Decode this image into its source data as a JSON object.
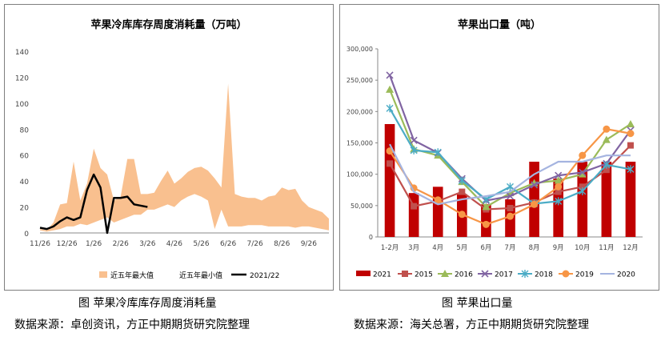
{
  "left": {
    "caption": "图  苹果冷库库存周度消耗量",
    "source": "数据来源：卓创资讯，方正中期期货研究院整理",
    "chart_data": {
      "type": "area",
      "title": "苹果冷库库存周度消耗量（万吨）",
      "y_ticks": [
        0,
        20,
        40,
        60,
        80,
        100,
        120,
        140
      ],
      "ylim": [
        0,
        140
      ],
      "x_tick_labels": [
        "11/26",
        "12/26",
        "1/26",
        "2/26",
        "3/26",
        "4/26",
        "5/26",
        "6/26",
        "7/26",
        "8/26",
        "9/26"
      ],
      "x_count": 44,
      "grid": false,
      "legend_position": "bottom",
      "series": [
        {
          "name": "近五年最大值",
          "color": "#f9c08f",
          "values": [
            3,
            2,
            8,
            22,
            23,
            55,
            25,
            38,
            65,
            50,
            45,
            25,
            28,
            57,
            57,
            30,
            30,
            31,
            40,
            48,
            38,
            42,
            47,
            50,
            51,
            48,
            42,
            35,
            115,
            30,
            28,
            27,
            27,
            25,
            28,
            29,
            35,
            33,
            34,
            25,
            20,
            18,
            16,
            11
          ]
        },
        {
          "name": "近五年最小值",
          "color": "#ffffff",
          "values": [
            2,
            1,
            2,
            3,
            5,
            5,
            7,
            6,
            8,
            10,
            12,
            8,
            10,
            12,
            14,
            14,
            18,
            18,
            20,
            22,
            20,
            25,
            28,
            30,
            28,
            25,
            3,
            18,
            5,
            5,
            5,
            6,
            6,
            6,
            5,
            5,
            5,
            5,
            4,
            5,
            5,
            4,
            3,
            2
          ]
        },
        {
          "name": "2021/22",
          "color": "#000000",
          "values": [
            4,
            3,
            5,
            9,
            12,
            10,
            12,
            33,
            45,
            35,
            0,
            27,
            27,
            28,
            22,
            21,
            20
          ]
        }
      ]
    }
  },
  "right": {
    "caption": "图  苹果出口量",
    "source": "数据来源：海关总署，方正中期期货研究院整理",
    "chart_data": {
      "type": "bar",
      "title": "苹果出口量（吨）",
      "categories": [
        "1-2月",
        "3月",
        "4月",
        "5月",
        "6月",
        "7月",
        "8月",
        "9月",
        "10月",
        "11月",
        "12月"
      ],
      "y_ticks": [
        "0",
        "50,000",
        "100,000",
        "150,000",
        "200,000",
        "250,000",
        "300,000"
      ],
      "ylim": [
        0,
        300000
      ],
      "grid": false,
      "legend_position": "bottom",
      "series": [
        {
          "name": "2021",
          "type": "bar",
          "color": "#c00000",
          "values": [
            180000,
            70000,
            80000,
            68000,
            52000,
            60000,
            120000,
            93000,
            120000,
            120000,
            120000
          ]
        },
        {
          "name": "2015",
          "type": "line",
          "color": "#c0504d",
          "marker": "square",
          "values": [
            117000,
            49000,
            57000,
            72000,
            44000,
            46000,
            55000,
            72000,
            80000,
            107000,
            146000
          ]
        },
        {
          "name": "2016",
          "type": "line",
          "color": "#9bbb59",
          "marker": "triangle",
          "values": [
            235000,
            140000,
            130000,
            88000,
            48000,
            70000,
            86000,
            90000,
            100000,
            155000,
            180000
          ]
        },
        {
          "name": "2017",
          "type": "line",
          "color": "#8064a2",
          "marker": "x",
          "values": [
            258000,
            154000,
            134000,
            93000,
            58000,
            65000,
            83000,
            98000,
            103000,
            117000,
            170000
          ]
        },
        {
          "name": "2018",
          "type": "line",
          "color": "#4bacc6",
          "marker": "star",
          "values": [
            205000,
            138000,
            135000,
            90000,
            60000,
            80000,
            53000,
            57000,
            73000,
            115000,
            108000
          ]
        },
        {
          "name": "2019",
          "type": "line",
          "color": "#f79646",
          "marker": "circle",
          "values": [
            137000,
            78000,
            59000,
            36000,
            20000,
            33000,
            52000,
            80000,
            130000,
            172000,
            165000
          ]
        },
        {
          "name": "2020",
          "type": "line",
          "color": "#a5b4e0",
          "marker": "none",
          "values": [
            148000,
            72000,
            52000,
            60000,
            65000,
            72000,
            100000,
            120000,
            120000,
            130000,
            130000
          ]
        }
      ]
    }
  }
}
